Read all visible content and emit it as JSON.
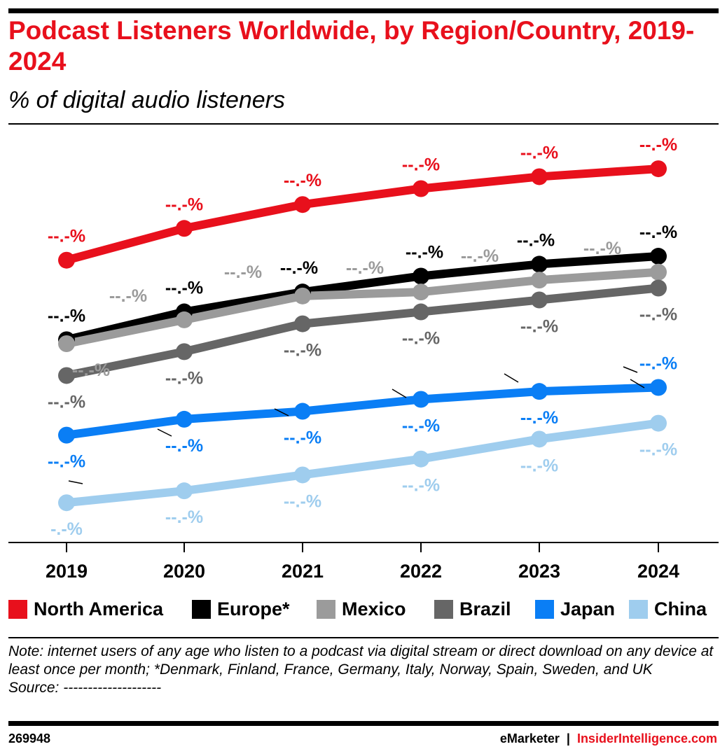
{
  "header": {
    "title": "Podcast Listeners Worldwide, by Region/Country, 2019-2024",
    "subtitle": "% of digital audio listeners"
  },
  "chart_data": {
    "type": "line",
    "title": "Podcast Listeners Worldwide, by Region/Country, 2019-2024",
    "subtitle": "% of digital audio listeners",
    "xlabel": "",
    "ylabel": "",
    "x": [
      "2019",
      "2020",
      "2021",
      "2022",
      "2023",
      "2024"
    ],
    "ylim": [
      0,
      100
    ],
    "grid": false,
    "legend_position": "bottom",
    "series": [
      {
        "name": "North America",
        "color": "#e8101c",
        "values": [
          71,
          79,
          85,
          89,
          92,
          94
        ],
        "labels": [
          "--.-%",
          "--.-%",
          "--.-%",
          "--.-%",
          "--.-%",
          "--.-%"
        ]
      },
      {
        "name": "Europe*",
        "color": "#000000",
        "values": [
          51,
          58,
          63,
          67,
          70,
          72
        ],
        "labels": [
          "--.-%",
          "--.-%",
          "--.-%",
          "--.-%",
          "--.-%",
          "--.-%"
        ]
      },
      {
        "name": "Mexico",
        "color": "#9b9b9b",
        "values": [
          50,
          56,
          62,
          63,
          66,
          68
        ],
        "labels": [
          "--.-%",
          "--.-%",
          "--.-%",
          "--.-%",
          "--.-%",
          "--.-%"
        ]
      },
      {
        "name": "Brazil",
        "color": "#666666",
        "values": [
          42,
          48,
          55,
          58,
          61,
          64
        ],
        "labels": [
          "--.-%",
          "--.-%",
          "--.-%",
          "--.-%",
          "--.-%",
          "--.-%"
        ]
      },
      {
        "name": "Japan",
        "color": "#0a7ef5",
        "values": [
          27,
          31,
          33,
          36,
          38,
          39
        ],
        "labels": [
          "--.-%",
          "--.-%",
          "--.-%",
          "--.-%",
          "--.-%",
          "--.-%"
        ]
      },
      {
        "name": "China",
        "color": "#9fcdee",
        "values": [
          10,
          13,
          17,
          21,
          26,
          30
        ],
        "labels": [
          "-.-%",
          "--.-%",
          "--.-%",
          "--.-%",
          "--.-%",
          "--.-%"
        ]
      }
    ]
  },
  "note": {
    "text": "Note: internet users of any age who listen to a podcast via digital stream or direct download on any device at least once per month; *Denmark, Finland, France, Germany, Italy, Norway, Spain, Sweden, and UK",
    "source": "Source: --------------------"
  },
  "footer": {
    "id": "269948",
    "brand": "eMarketer",
    "separator": "|",
    "site": "InsiderIntelligence.com"
  }
}
